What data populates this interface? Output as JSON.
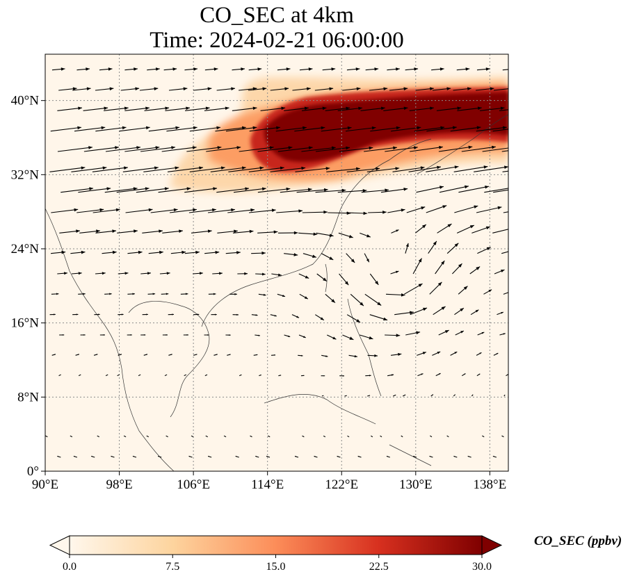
{
  "title": {
    "line1": "CO_SEC at 4km",
    "line2": "Time: 2024-02-21 06:00:00"
  },
  "map": {
    "extent": {
      "lon_min": 90,
      "lon_max": 140,
      "lat_min": 0,
      "lat_max": 45
    },
    "lon_ticks": [
      {
        "value": 90,
        "label": "90°E"
      },
      {
        "value": 98,
        "label": "98°E"
      },
      {
        "value": 106,
        "label": "106°E"
      },
      {
        "value": 114,
        "label": "114°E"
      },
      {
        "value": 122,
        "label": "122°E"
      },
      {
        "value": 130,
        "label": "130°E"
      },
      {
        "value": 138,
        "label": "138°E"
      }
    ],
    "lat_ticks": [
      {
        "value": 0,
        "label": "0°"
      },
      {
        "value": 8,
        "label": "8°N"
      },
      {
        "value": 16,
        "label": "16°N"
      },
      {
        "value": 24,
        "label": "24°N"
      },
      {
        "value": 32,
        "label": "32°N"
      },
      {
        "value": 40,
        "label": "40°N"
      }
    ],
    "gridlines": true,
    "field": "CO_SEC",
    "vectors": "wind",
    "cyclone_center": {
      "lon": 127,
      "lat": 21
    },
    "plume_high_region": {
      "lon_range": [
        113,
        140
      ],
      "lat_range": [
        33,
        41
      ]
    },
    "plume_moderate_region": {
      "lon_range": [
        103,
        140
      ],
      "lat_range": [
        30,
        43
      ]
    }
  },
  "colorbar": {
    "colormap": "OrRd",
    "colors": [
      "#fff7ec",
      "#fdd49e",
      "#fc8d59",
      "#d7301f",
      "#7f0000"
    ],
    "ticks": [
      "0.0",
      "7.5",
      "15.0",
      "22.5",
      "30.0"
    ],
    "min": 0,
    "max": 30,
    "extend": "both",
    "label": "CO_SEC (ppbv)"
  }
}
